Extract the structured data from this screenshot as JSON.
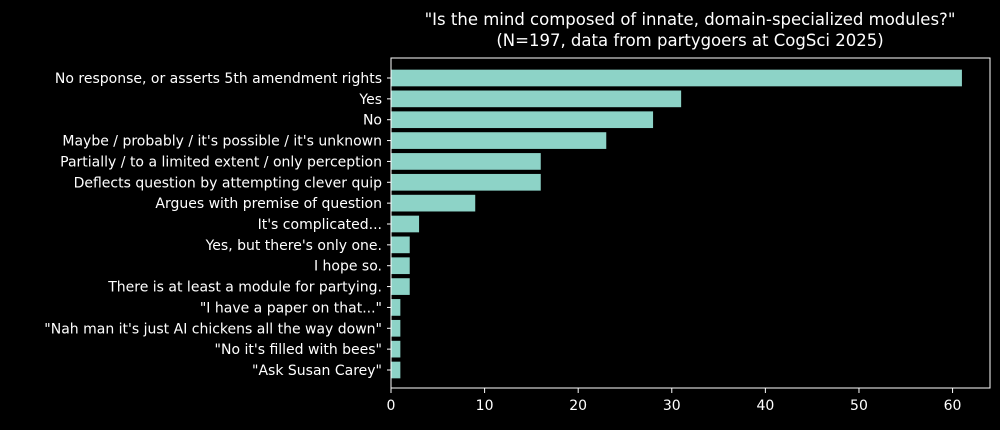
{
  "chart_data": {
    "type": "bar",
    "orientation": "horizontal",
    "title_line1": "\"Is the mind composed of innate, domain-specialized modules?\"",
    "title_line2": "(N=197, data from partygoers at CogSci 2025)",
    "xlabel": "",
    "ylabel": "",
    "xlim": [
      0,
      64
    ],
    "xticks": [
      0,
      10,
      20,
      30,
      40,
      50,
      60
    ],
    "grid": false,
    "categories": [
      "No response, or asserts 5th amendment rights",
      "Yes",
      "No",
      "Maybe / probably / it's possible / it's unknown",
      "Partially / to a limited extent / only perception",
      "Deflects question by attempting clever quip",
      "Argues with premise of question",
      "It's complicated...",
      "Yes, but there's only one.",
      "I hope so.",
      "There is at least a module for partying.",
      "\"I have a paper on that...\"",
      "\"Nah man it's just AI chickens all the way down\"",
      "\"No it's filled with bees\"",
      "\"Ask Susan Carey\""
    ],
    "values": [
      61,
      31,
      28,
      23,
      16,
      16,
      9,
      3,
      2,
      2,
      2,
      1,
      1,
      1,
      1
    ],
    "bar_color": "#8dd3c7",
    "background_color": "#000000",
    "text_color": "#ffffff"
  }
}
